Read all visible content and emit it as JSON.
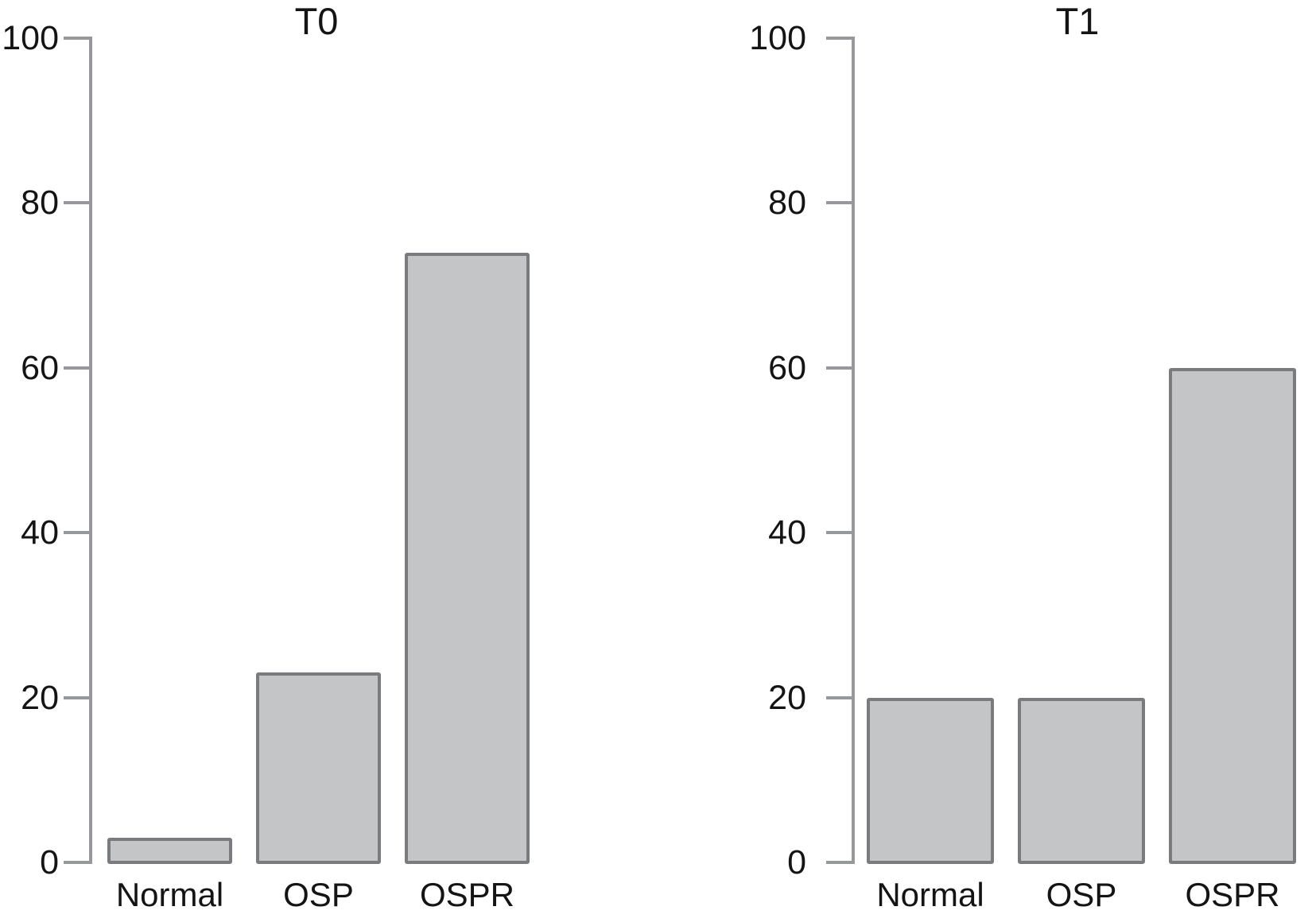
{
  "figure": {
    "background": "#ffffff",
    "description": "Two grouped bar panels comparing Normal, OSP and OSPR at times T0 and T1"
  },
  "colors": {
    "bar_fill": "#c4c5c7",
    "bar_border": "#7a7b7e",
    "axis": "#97989b",
    "text": "#141414"
  },
  "chart_data": [
    {
      "type": "bar",
      "title": "T0",
      "categories": [
        "Normal",
        "OSP",
        "OSPR"
      ],
      "values": [
        3,
        23,
        74
      ],
      "xlabel": "",
      "ylabel": "",
      "ylim": [
        0,
        100
      ],
      "yticks": [
        0,
        20,
        40,
        60,
        80,
        100
      ],
      "grid": false,
      "legend": "none"
    },
    {
      "type": "bar",
      "title": "T1",
      "categories": [
        "Normal",
        "OSP",
        "OSPR"
      ],
      "values": [
        20,
        20,
        60
      ],
      "xlabel": "",
      "ylabel": "",
      "ylim": [
        0,
        100
      ],
      "yticks": [
        0,
        20,
        40,
        60,
        80,
        100
      ],
      "grid": false,
      "legend": "none"
    }
  ]
}
